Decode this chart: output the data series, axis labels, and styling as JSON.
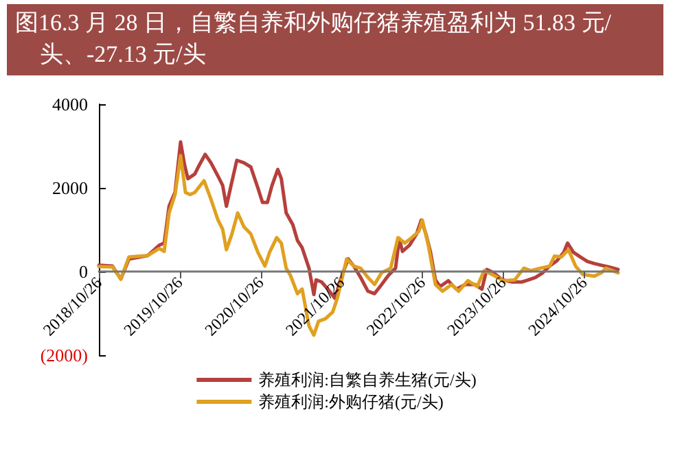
{
  "chart_data": {
    "type": "line",
    "title": "图16.3 月 28 日，自繁自养和外购仔猪养殖盈利为 51.83 元/头、-27.13 元/头",
    "xlim": [
      "2018-10-26",
      "2025-03-28"
    ],
    "xticks": [
      {
        "value": "2018-10-26",
        "label": "2018/10/26"
      },
      {
        "value": "2019-10-26",
        "label": "2019/10/26"
      },
      {
        "value": "2020-10-26",
        "label": "2020/10/26"
      },
      {
        "value": "2021-10-26",
        "label": "2021/10/26"
      },
      {
        "value": "2022-10-26",
        "label": "2022/10/26"
      },
      {
        "value": "2023-10-26",
        "label": "2023/10/26"
      },
      {
        "value": "2024-10-26",
        "label": "2024/10/26"
      }
    ],
    "ylim": [
      -2000,
      4000
    ],
    "yticks": [
      {
        "value": -2000,
        "label": "(2000)"
      },
      0,
      2000,
      4000
    ],
    "grid": false,
    "legend": "bottom",
    "marker": "none",
    "line_style": "solid",
    "series": [
      {
        "name": "养殖利润:自繁自养生猪(元/头)",
        "color": "#b5403c",
        "x": [
          "2018-10-26",
          "2018-12-26",
          "2019-02-02",
          "2019-03-11",
          "2019-06-03",
          "2019-07-26",
          "2019-08-17",
          "2019-09-08",
          "2019-10-05",
          "2019-10-30",
          "2019-11-17",
          "2019-12-02",
          "2020-01-02",
          "2020-01-23",
          "2020-02-18",
          "2020-03-15",
          "2020-04-16",
          "2020-05-07",
          "2020-05-24",
          "2020-06-14",
          "2020-07-10",
          "2020-08-11",
          "2020-09-11",
          "2020-10-13",
          "2020-11-03",
          "2020-11-25",
          "2020-12-16",
          "2021-01-11",
          "2021-01-27",
          "2021-02-18",
          "2021-03-20",
          "2021-04-10",
          "2021-05-01",
          "2021-06-01",
          "2021-06-23",
          "2021-07-03",
          "2021-07-28",
          "2021-08-25",
          "2021-09-26",
          "2021-10-28",
          "2021-11-25",
          "2021-12-20",
          "2022-01-20",
          "2022-02-22",
          "2022-03-24",
          "2022-04-25",
          "2022-05-26",
          "2022-06-27",
          "2022-07-14",
          "2022-07-28",
          "2022-08-29",
          "2022-09-30",
          "2022-10-21",
          "2022-11-11",
          "2022-12-02",
          "2022-12-24",
          "2023-01-14",
          "2023-02-20",
          "2023-03-28",
          "2023-05-08",
          "2023-06-20",
          "2023-07-22",
          "2023-08-13",
          "2023-09-13",
          "2023-10-22",
          "2023-12-07",
          "2024-01-18",
          "2024-02-18",
          "2024-03-20",
          "2024-04-22",
          "2024-05-23",
          "2024-06-25",
          "2024-07-26",
          "2024-08-12",
          "2024-09-07",
          "2024-10-08",
          "2024-11-10",
          "2024-12-11",
          "2025-01-12",
          "2025-02-13",
          "2025-03-28"
        ],
        "values": [
          150,
          130,
          -180,
          300,
          380,
          630,
          680,
          1560,
          1900,
          3100,
          2550,
          2220,
          2330,
          2550,
          2800,
          2600,
          2280,
          2060,
          1560,
          2060,
          2660,
          2600,
          2500,
          2000,
          1650,
          1650,
          2060,
          2440,
          2220,
          1400,
          1120,
          740,
          570,
          80,
          -550,
          -200,
          -250,
          -420,
          -640,
          -90,
          300,
          130,
          -140,
          -470,
          -530,
          -310,
          -90,
          80,
          790,
          480,
          630,
          900,
          1230,
          900,
          460,
          -200,
          -360,
          -220,
          -420,
          -310,
          -310,
          -420,
          50,
          -30,
          -200,
          -250,
          -250,
          -200,
          -140,
          -30,
          130,
          260,
          460,
          680,
          460,
          350,
          240,
          190,
          150,
          110,
          52
        ]
      },
      {
        "name": "养殖利润:外购仔猪(元/头)",
        "color": "#e0a020",
        "x": [
          "2018-10-26",
          "2018-12-26",
          "2019-02-02",
          "2019-03-11",
          "2019-06-03",
          "2019-07-26",
          "2019-08-17",
          "2019-09-08",
          "2019-10-05",
          "2019-10-30",
          "2019-11-21",
          "2019-12-12",
          "2020-01-02",
          "2020-02-13",
          "2020-03-15",
          "2020-04-16",
          "2020-05-07",
          "2020-05-24",
          "2020-06-18",
          "2020-07-14",
          "2020-08-11",
          "2020-09-11",
          "2020-10-13",
          "2020-11-14",
          "2020-12-05",
          "2021-01-06",
          "2021-01-27",
          "2021-02-18",
          "2021-03-09",
          "2021-04-10",
          "2021-05-01",
          "2021-06-01",
          "2021-06-23",
          "2021-07-14",
          "2021-08-14",
          "2021-09-16",
          "2021-10-07",
          "2021-11-18",
          "2021-12-20",
          "2022-01-20",
          "2022-02-22",
          "2022-03-24",
          "2022-04-25",
          "2022-06-05",
          "2022-07-08",
          "2022-08-08",
          "2022-09-08",
          "2022-10-10",
          "2022-10-26",
          "2022-11-22",
          "2022-12-24",
          "2023-01-25",
          "2023-03-07",
          "2023-04-08",
          "2023-05-20",
          "2023-07-01",
          "2023-08-01",
          "2023-09-13",
          "2023-10-26",
          "2023-12-17",
          "2024-01-28",
          "2024-02-29",
          "2024-04-11",
          "2024-05-23",
          "2024-06-14",
          "2024-07-15",
          "2024-08-16",
          "2024-09-17",
          "2024-10-20",
          "2024-12-11",
          "2025-01-12",
          "2025-02-01",
          "2025-03-28"
        ],
        "values": [
          120,
          110,
          -180,
          350,
          380,
          550,
          480,
          1400,
          1840,
          2770,
          1890,
          1840,
          1890,
          2170,
          1730,
          1230,
          1010,
          520,
          900,
          1400,
          1070,
          900,
          460,
          130,
          460,
          810,
          680,
          80,
          -90,
          -530,
          -420,
          -1300,
          -1520,
          -1190,
          -1130,
          -970,
          -640,
          300,
          130,
          80,
          -140,
          -310,
          -30,
          80,
          810,
          680,
          810,
          960,
          1230,
          630,
          -310,
          -470,
          -310,
          -470,
          -220,
          -360,
          20,
          -90,
          -220,
          -200,
          80,
          20,
          80,
          130,
          370,
          350,
          520,
          130,
          -70,
          -110,
          -30,
          80,
          -30
        ]
      }
    ]
  }
}
